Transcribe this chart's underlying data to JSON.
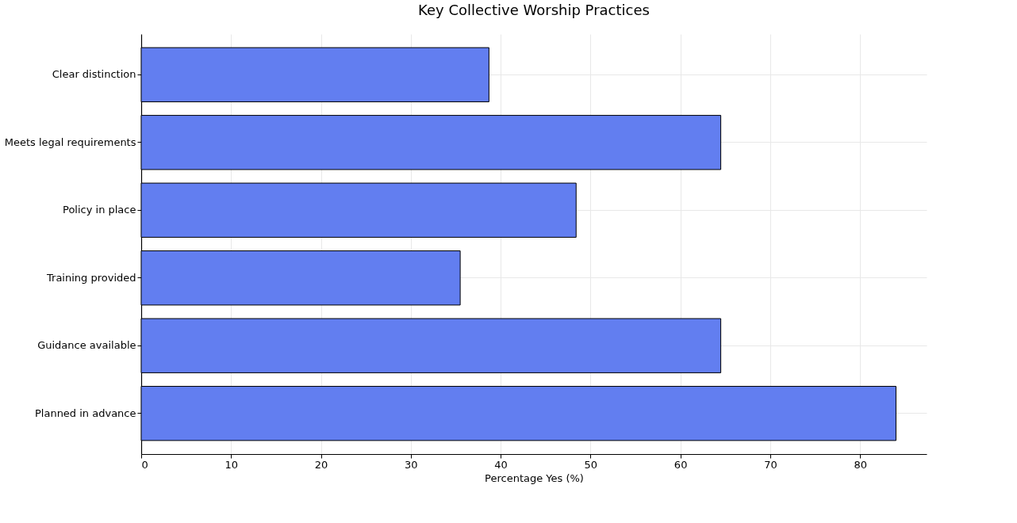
{
  "chart_data": {
    "type": "bar",
    "orientation": "horizontal",
    "title": "Key Collective Worship Practices",
    "xlabel": "Percentage Yes (%)",
    "categories": [
      "Clear distinction",
      "Meets legal requirements",
      "Policy in place",
      "Training provided",
      "Guidance available",
      "Planned in advance"
    ],
    "values": [
      38.7,
      64.5,
      48.4,
      35.5,
      64.5,
      84.0
    ],
    "color": "#627ef0",
    "xlim": [
      0,
      87.4
    ],
    "xticks": [
      0,
      10,
      20,
      30,
      40,
      50,
      60,
      70,
      80
    ],
    "grid": true
  }
}
